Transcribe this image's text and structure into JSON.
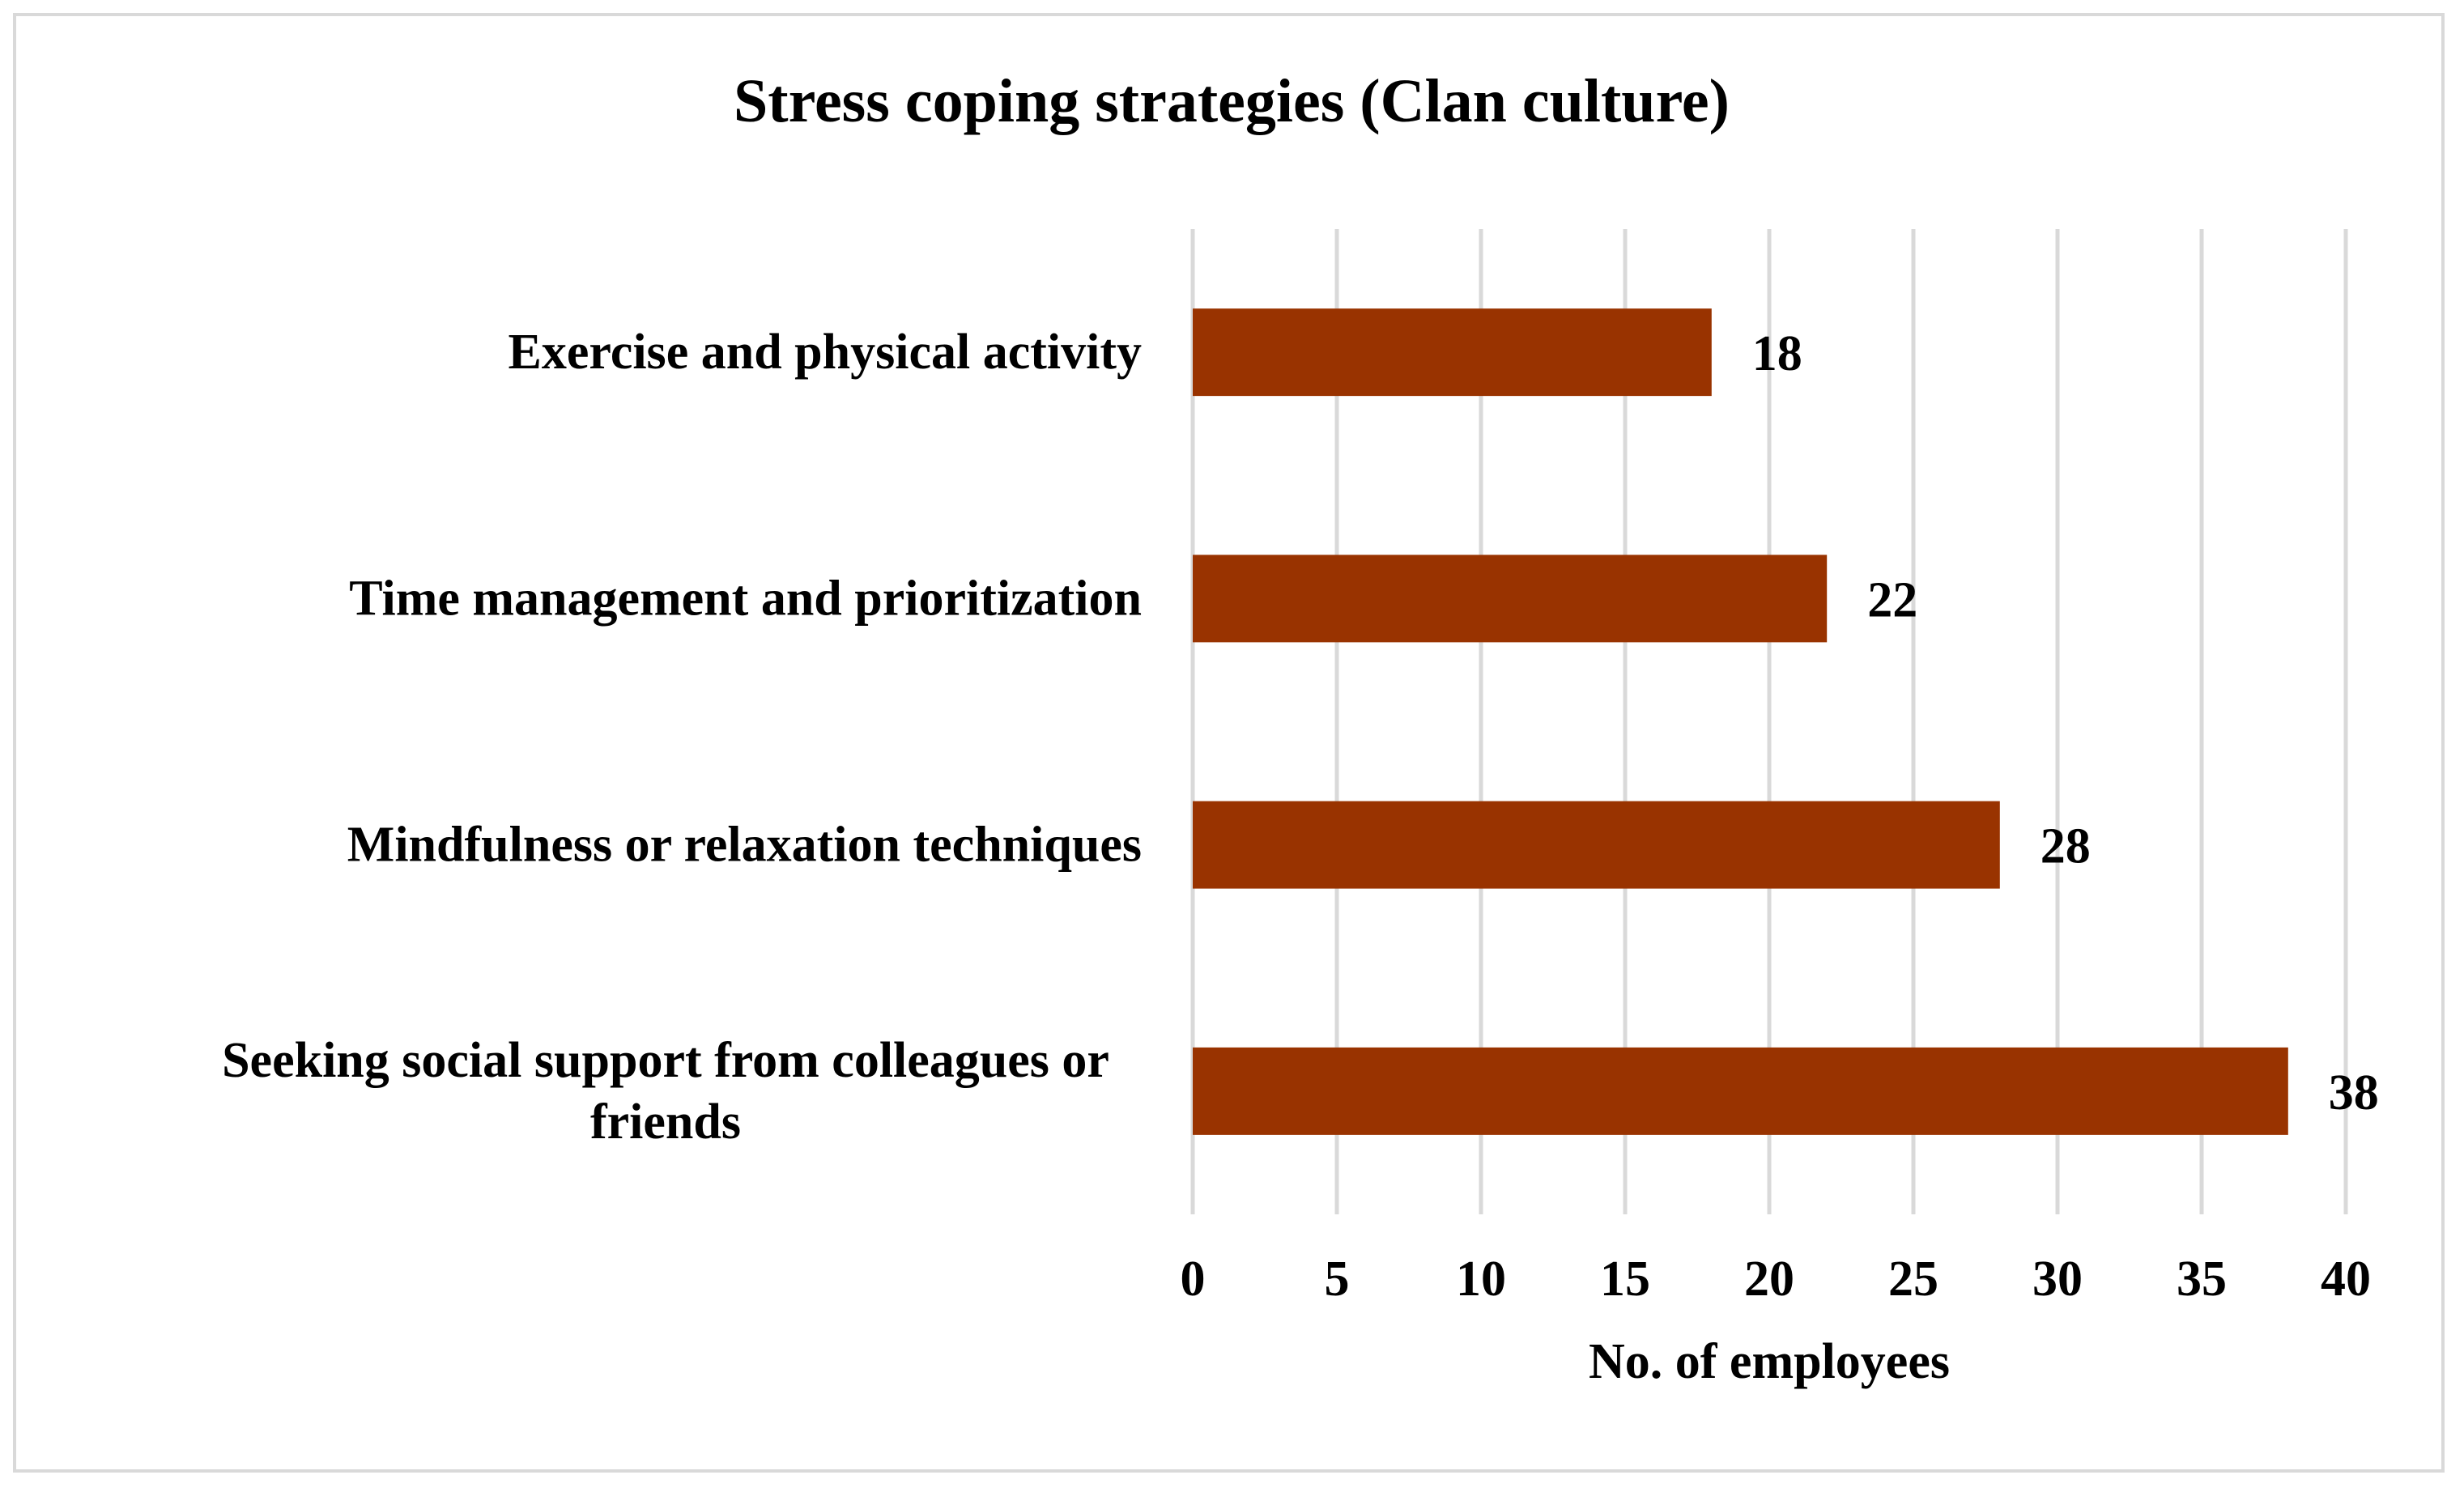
{
  "chart_data": {
    "type": "bar",
    "orientation": "horizontal",
    "title": "Stress coping strategies (Clan culture)",
    "xlabel": "No. of employees",
    "ylabel": "",
    "categories": [
      "Exercise and physical activity",
      "Time management and prioritization",
      "Mindfulness or relaxation techniques",
      "Seeking social support from colleagues or friends"
    ],
    "category_lines": [
      [
        "Exercise and physical activity"
      ],
      [
        "Time management and prioritization"
      ],
      [
        "Mindfulness or relaxation techniques"
      ],
      [
        "Seeking social support from colleagues or",
        "friends"
      ]
    ],
    "values": [
      18,
      22,
      28,
      38
    ],
    "xlim": [
      0,
      40
    ],
    "ticks": [
      0,
      5,
      10,
      15,
      20,
      25,
      30,
      35,
      40
    ],
    "grid": true,
    "legend": "none",
    "bar_color": "#993300",
    "grid_color": "#d9d9d9"
  }
}
